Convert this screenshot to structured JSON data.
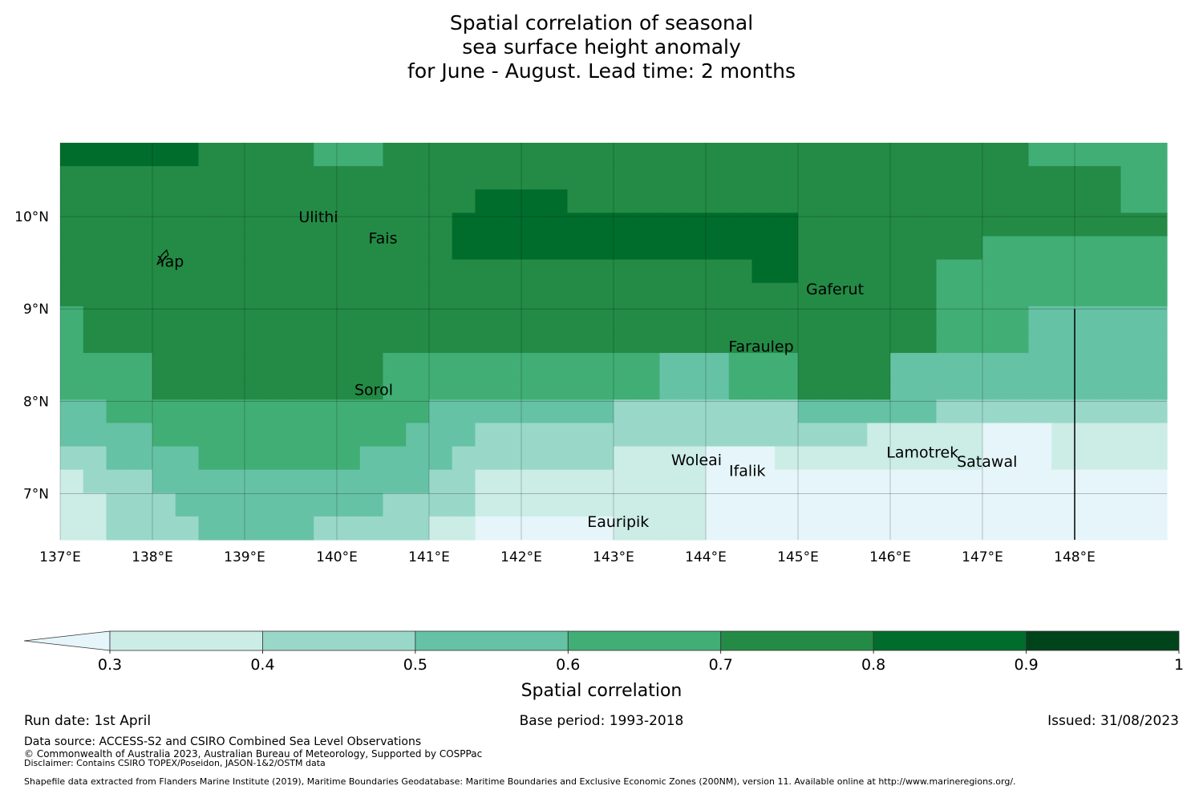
{
  "title": {
    "line1": "Spatial correlation of seasonal",
    "line2": "sea surface height anomaly",
    "line3": "for June - August. Lead time: 2 months"
  },
  "map": {
    "lon_range": [
      137,
      149
    ],
    "lat_range": [
      6.5,
      10.8
    ],
    "lon_ticks": [
      {
        "value": 137,
        "label": "137°E"
      },
      {
        "value": 138,
        "label": "138°E"
      },
      {
        "value": 139,
        "label": "139°E"
      },
      {
        "value": 140,
        "label": "140°E"
      },
      {
        "value": 141,
        "label": "141°E"
      },
      {
        "value": 142,
        "label": "142°E"
      },
      {
        "value": 143,
        "label": "143°E"
      },
      {
        "value": 144,
        "label": "144°E"
      },
      {
        "value": 145,
        "label": "145°E"
      },
      {
        "value": 146,
        "label": "146°E"
      },
      {
        "value": 147,
        "label": "147°E"
      },
      {
        "value": 148,
        "label": "148°E"
      }
    ],
    "lat_ticks": [
      {
        "value": 10,
        "label": "10°N"
      },
      {
        "value": 9,
        "label": "9°N"
      },
      {
        "value": 8,
        "label": "8°N"
      },
      {
        "value": 7,
        "label": "7°N"
      }
    ],
    "places": [
      {
        "name": "Ulithi",
        "lon": 139.8,
        "lat": 10.0
      },
      {
        "name": "Fais",
        "lon": 140.5,
        "lat": 9.77
      },
      {
        "name": "Yap",
        "lon": 138.2,
        "lat": 9.52
      },
      {
        "name": "Gaferut",
        "lon": 145.4,
        "lat": 9.22
      },
      {
        "name": "Faraulep",
        "lon": 144.6,
        "lat": 8.6
      },
      {
        "name": "Sorol",
        "lon": 140.4,
        "lat": 8.13
      },
      {
        "name": "Woleai",
        "lon": 143.9,
        "lat": 7.37
      },
      {
        "name": "Ifalik",
        "lon": 144.45,
        "lat": 7.25
      },
      {
        "name": "Lamotrek",
        "lon": 146.35,
        "lat": 7.45
      },
      {
        "name": "Satawal",
        "lon": 147.05,
        "lat": 7.35
      },
      {
        "name": "Eauripik",
        "lon": 143.05,
        "lat": 6.7
      }
    ],
    "boundary_lon": 148.0,
    "boundary_lat": [
      6.5,
      9.0
    ]
  },
  "colorbar": {
    "label": "Spatial correlation",
    "ticks": [
      "0.3",
      "0.4",
      "0.5",
      "0.6",
      "0.7",
      "0.8",
      "0.9",
      "1"
    ],
    "colors": [
      "#e5f5f9",
      "#ccece6",
      "#99d8c9",
      "#66c2a4",
      "#41ae76",
      "#238b45",
      "#006d2c",
      "#00441b"
    ],
    "extend": "min"
  },
  "footer": {
    "run_date": "Run date: 1st April",
    "base_period": "Base period: 1993-2018",
    "issued": "Issued: 31/08/2023",
    "data_source": "Data source: ACCESS-S2 and CSIRO Combined Sea Level Observations",
    "copyright": "© Commonwealth of Australia 2023, Australian Bureau of Meteorology, Supported by COSPPac",
    "disclaimer": "Disclaimer: Contains CSIRO TOPEX/Poseidon, JASON-1&2/OSTM data",
    "shapefile": "Shapefile data extracted from Flanders Marine Institute (2019), Maritime Boundaries Geodatabase: Maritime Boundaries and Exclusive Economic Zones (200NM), version 11. Available online at http://www.marineregions.org/."
  }
}
